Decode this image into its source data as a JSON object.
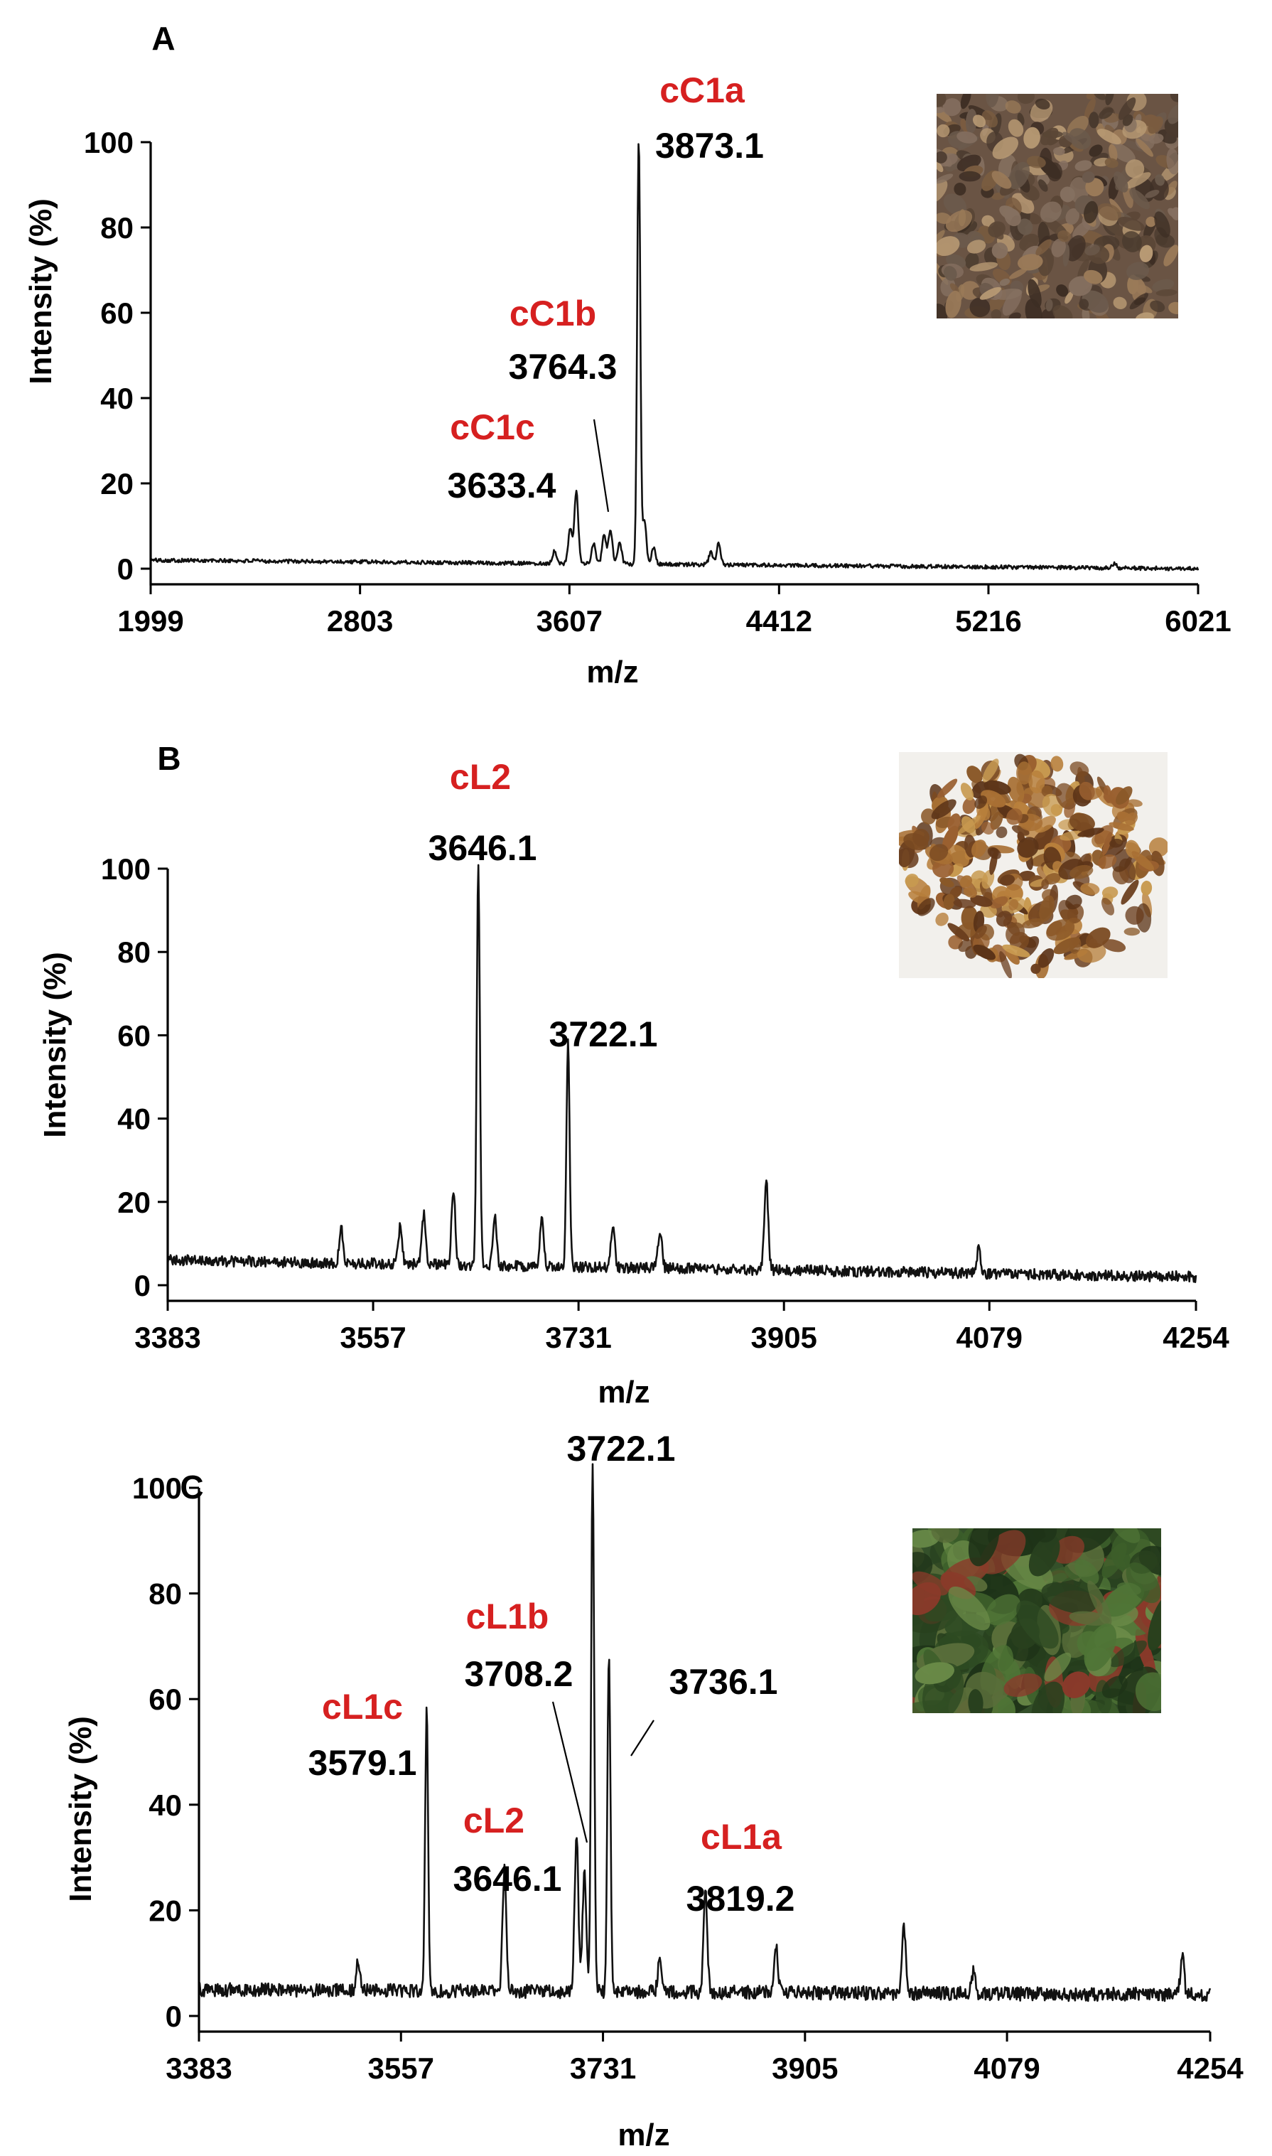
{
  "chart_data": [
    {
      "type": "line",
      "panel_letter": "A",
      "xlabel": "m/z",
      "ylabel": "Intensity (%)",
      "xlim": [
        1999,
        6021
      ],
      "ylim": [
        0,
        100
      ],
      "x_ticks": [
        1999,
        2803,
        3607,
        4412,
        5216,
        6021
      ],
      "y_ticks": [
        0,
        20,
        40,
        60,
        80,
        100
      ],
      "peaks": [
        {
          "x": 3550,
          "y": 3
        },
        {
          "x": 3610,
          "y": 8
        },
        {
          "x": 3633.4,
          "y": 17
        },
        {
          "x": 3700,
          "y": 5
        },
        {
          "x": 3740,
          "y": 7
        },
        {
          "x": 3764.3,
          "y": 8
        },
        {
          "x": 3800,
          "y": 5
        },
        {
          "x": 3873.1,
          "y": 100
        },
        {
          "x": 3895,
          "y": 10
        },
        {
          "x": 3930,
          "y": 4
        },
        {
          "x": 4150,
          "y": 3
        },
        {
          "x": 4180,
          "y": 5
        },
        {
          "x": 5700,
          "y": 1
        }
      ],
      "baseline": {
        "start": 2,
        "end": 0
      },
      "annotations": [
        {
          "name": "cC1a",
          "mass": "3873.1",
          "color": "#d62020"
        },
        {
          "name": "cC1b",
          "mass": "3764.3",
          "color": "#d62020"
        },
        {
          "name": "cC1c",
          "mass": "3633.4",
          "color": "#d62020"
        }
      ],
      "grid": false,
      "photo": "roasted-coffee-husk-photo"
    },
    {
      "type": "line",
      "panel_letter": "B",
      "xlabel": "m/z",
      "ylabel": "Intensity (%)",
      "xlim": [
        3383,
        4254
      ],
      "ylim": [
        0,
        100
      ],
      "x_ticks": [
        3383,
        3557,
        3731,
        3905,
        4079,
        4254
      ],
      "y_ticks": [
        0,
        20,
        40,
        60,
        80,
        100
      ],
      "peaks": [
        {
          "x": 3530,
          "y": 8
        },
        {
          "x": 3580,
          "y": 9
        },
        {
          "x": 3600,
          "y": 12
        },
        {
          "x": 3625,
          "y": 18
        },
        {
          "x": 3646.1,
          "y": 96
        },
        {
          "x": 3660,
          "y": 12
        },
        {
          "x": 3700,
          "y": 12
        },
        {
          "x": 3722.1,
          "y": 55
        },
        {
          "x": 3760,
          "y": 10
        },
        {
          "x": 3800,
          "y": 9
        },
        {
          "x": 3890,
          "y": 22
        },
        {
          "x": 4070,
          "y": 6
        }
      ],
      "baseline": {
        "start": 6,
        "end": 2
      },
      "annotations": [
        {
          "name": "cL2",
          "mass": "3646.1",
          "color": "#d62020"
        },
        {
          "name": "",
          "mass": "3722.1",
          "color": "#d62020"
        }
      ],
      "grid": false,
      "photo": "coffee-pulp-photo"
    },
    {
      "type": "line",
      "panel_letter": "C",
      "xlabel": "m/z",
      "ylabel": "Intensity (%)",
      "xlim": [
        3383,
        4254
      ],
      "ylim": [
        0,
        100
      ],
      "x_ticks": [
        3383,
        3557,
        3731,
        3905,
        4079,
        4254
      ],
      "y_ticks": [
        0,
        20,
        40,
        60,
        80,
        100
      ],
      "peaks": [
        {
          "x": 3520,
          "y": 6
        },
        {
          "x": 3579.1,
          "y": 53
        },
        {
          "x": 3646.1,
          "y": 23
        },
        {
          "x": 3708.2,
          "y": 30
        },
        {
          "x": 3715,
          "y": 22
        },
        {
          "x": 3722.1,
          "y": 100
        },
        {
          "x": 3736.1,
          "y": 64
        },
        {
          "x": 3780,
          "y": 6
        },
        {
          "x": 3819.2,
          "y": 19
        },
        {
          "x": 3880,
          "y": 9
        },
        {
          "x": 3990,
          "y": 13
        },
        {
          "x": 4050,
          "y": 4
        },
        {
          "x": 4230,
          "y": 7
        }
      ],
      "baseline": {
        "start": 5,
        "end": 4
      },
      "annotations": [
        {
          "name": "",
          "mass": "3722.1",
          "color": "#d62020"
        },
        {
          "name": "cL1b",
          "mass": "3708.2",
          "color": "#d62020"
        },
        {
          "name": "",
          "mass": "3736.1",
          "color": "#d62020"
        },
        {
          "name": "cL1c",
          "mass": "3579.1",
          "color": "#d62020"
        },
        {
          "name": "cL2",
          "mass": "3646.1",
          "color": "#d62020"
        },
        {
          "name": "cL1a",
          "mass": "3819.2",
          "color": "#d62020"
        }
      ],
      "grid": false,
      "photo": "coffee-leaves-photo"
    }
  ]
}
